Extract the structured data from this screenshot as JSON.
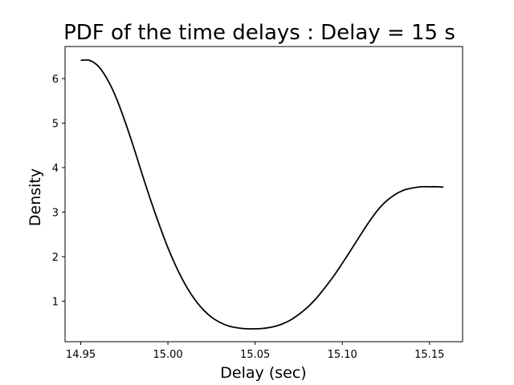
{
  "chart_data": {
    "type": "line",
    "title": "PDF of the time delays : Delay = 15 s",
    "xlabel": "Delay (sec)",
    "ylabel": "Density",
    "xlim": [
      14.941,
      15.169
    ],
    "ylim": [
      0.09,
      6.72
    ],
    "xticks": [
      {
        "value": 14.95,
        "label": "14.95"
      },
      {
        "value": 15.0,
        "label": "15.00"
      },
      {
        "value": 15.05,
        "label": "15.05"
      },
      {
        "value": 15.1,
        "label": "15.10"
      },
      {
        "value": 15.15,
        "label": "15.15"
      }
    ],
    "yticks": [
      {
        "value": 1,
        "label": "1"
      },
      {
        "value": 2,
        "label": "2"
      },
      {
        "value": 3,
        "label": "3"
      },
      {
        "value": 4,
        "label": "4"
      },
      {
        "value": 5,
        "label": "5"
      },
      {
        "value": 6,
        "label": "6"
      }
    ],
    "grid": false,
    "series": [
      {
        "color": "#000000",
        "x": [
          14.95,
          14.955,
          14.96,
          14.965,
          14.97,
          14.975,
          14.98,
          14.985,
          14.99,
          14.995,
          15.0,
          15.005,
          15.01,
          15.015,
          15.02,
          15.025,
          15.03,
          15.035,
          15.04,
          15.045,
          15.05,
          15.055,
          15.06,
          15.065,
          15.07,
          15.075,
          15.08,
          15.085,
          15.09,
          15.095,
          15.1,
          15.105,
          15.11,
          15.115,
          15.12,
          15.125,
          15.13,
          15.135,
          15.14,
          15.145,
          15.15,
          15.155,
          15.158
        ],
        "y": [
          6.41,
          6.41,
          6.28,
          6.0,
          5.6,
          5.08,
          4.5,
          3.88,
          3.28,
          2.72,
          2.2,
          1.75,
          1.37,
          1.06,
          0.82,
          0.64,
          0.52,
          0.44,
          0.4,
          0.38,
          0.38,
          0.39,
          0.42,
          0.48,
          0.57,
          0.7,
          0.86,
          1.06,
          1.3,
          1.56,
          1.85,
          2.15,
          2.46,
          2.76,
          3.03,
          3.24,
          3.39,
          3.49,
          3.54,
          3.57,
          3.57,
          3.57,
          3.56
        ]
      }
    ]
  }
}
